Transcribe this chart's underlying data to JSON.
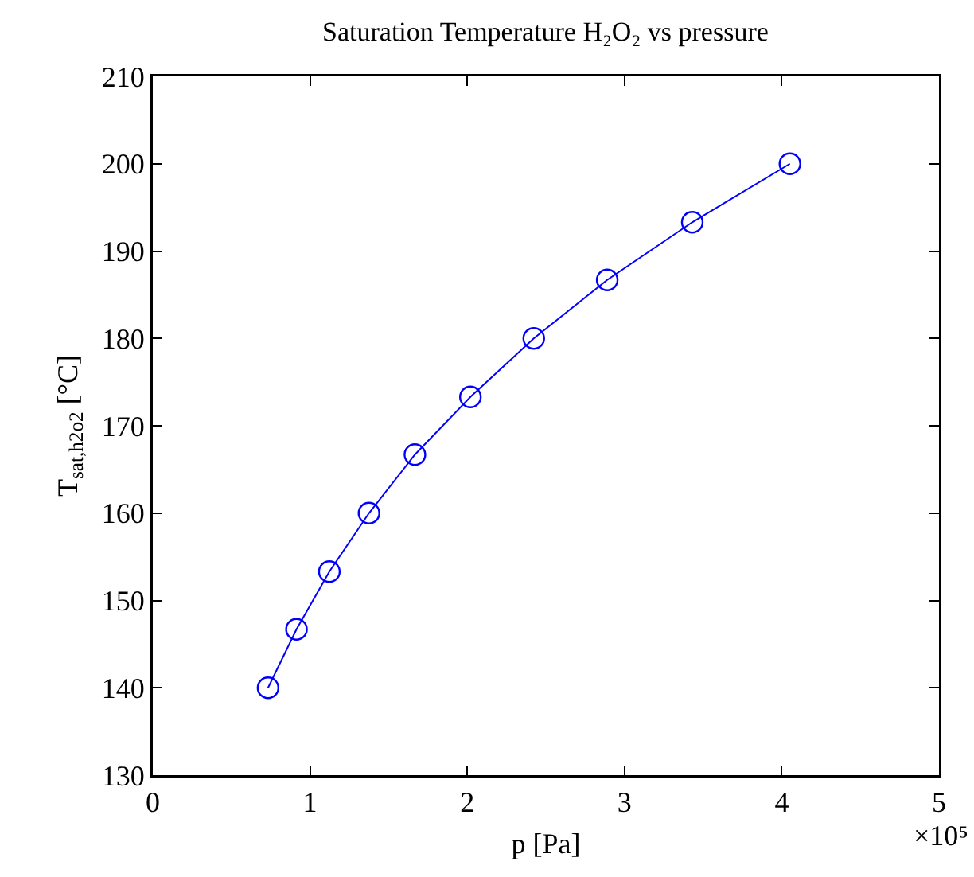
{
  "chart_data": {
    "type": "line",
    "title": "Saturation Temperature H₂O₂ vs pressure",
    "xlabel": "p [Pa]",
    "ylabel": "T$_{sat,h2o2}$ [°C]",
    "x": [
      0.733,
      0.914,
      1.123,
      1.375,
      1.667,
      2.02,
      2.423,
      2.89,
      3.431,
      4.052
    ],
    "series": [
      {
        "color": "#0000ff",
        "values": [
          140,
          146.7,
          153.3,
          160,
          166.7,
          173.3,
          180,
          186.7,
          193.3,
          200
        ]
      }
    ],
    "xlim": [
      0,
      5
    ],
    "xticks": [
      0,
      1,
      2,
      3,
      4,
      5
    ],
    "ylim": [
      130,
      210
    ],
    "yticks": [
      130,
      140,
      150,
      160,
      170,
      180,
      190,
      200,
      210
    ],
    "annotations": [
      "×10⁵"
    ],
    "grid": false,
    "marker": "circle",
    "line_style": "solid"
  }
}
